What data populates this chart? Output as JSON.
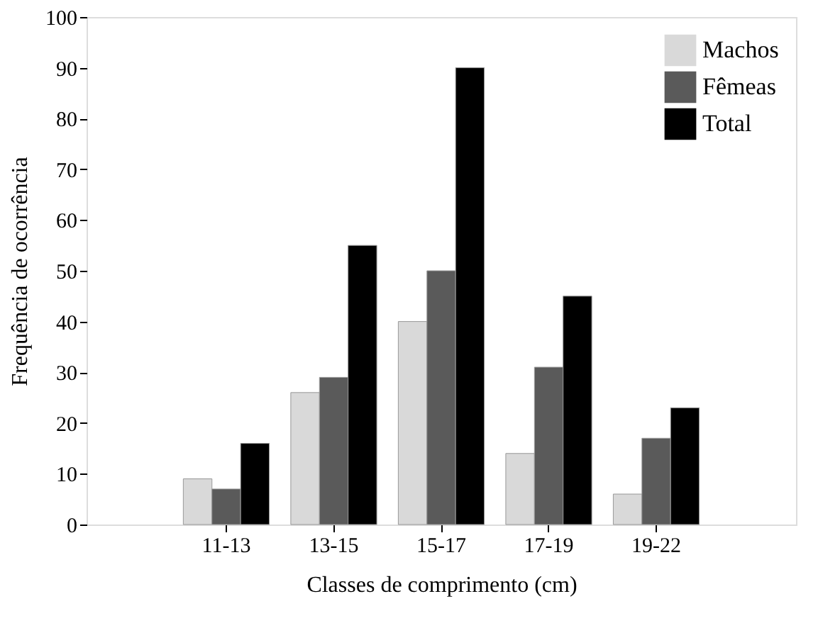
{
  "chart_data": {
    "type": "bar",
    "xlabel": "Classes de comprimento (cm)",
    "ylabel": "Frequência de ocorrência",
    "categories": [
      "11-13",
      "13-15",
      "15-17",
      "17-19",
      "19-22"
    ],
    "series": [
      {
        "name": "Machos",
        "color": "#d9d9d9",
        "values": [
          9,
          26,
          40,
          14,
          6
        ]
      },
      {
        "name": "Fêmeas",
        "color": "#5a5a5a",
        "values": [
          7,
          29,
          50,
          31,
          17
        ]
      },
      {
        "name": "Total",
        "color": "#000000",
        "values": [
          16,
          55,
          90,
          45,
          23
        ]
      }
    ],
    "ylim": [
      0,
      100
    ],
    "yticks": [
      0,
      10,
      20,
      30,
      40,
      50,
      60,
      70,
      80,
      90,
      100
    ],
    "grid": false,
    "legend": "top right"
  }
}
